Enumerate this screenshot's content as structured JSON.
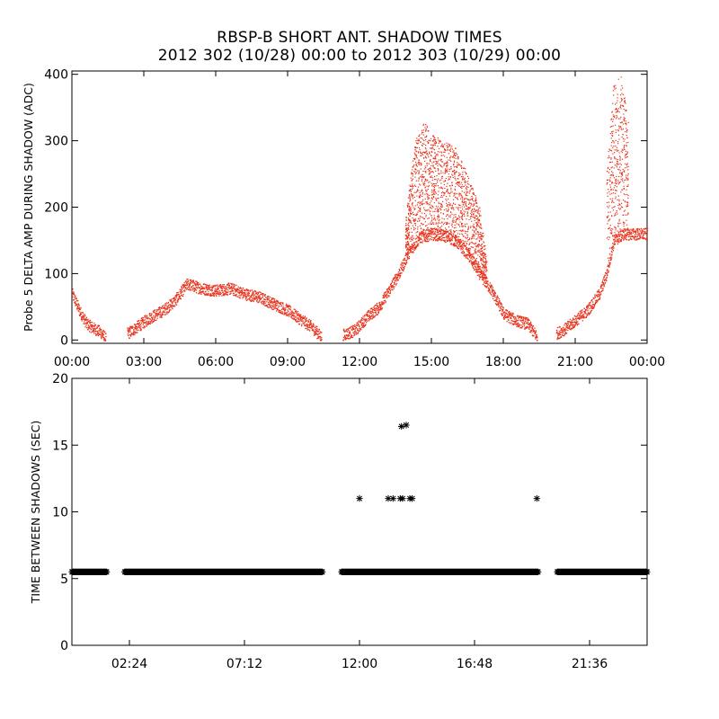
{
  "title": "RBSP-B SHORT ANT. SHADOW TIMES",
  "subtitle": "2012 302 (10/28) 00:00 to 2012 303 (10/29) 00:00",
  "colors": {
    "top_series": "#e8321c",
    "bottom_series": "#000000",
    "axes": "#000000"
  },
  "chart_data": [
    {
      "type": "scatter",
      "ylabel": "Probe 5 DELTA AMP DURING SHADOW (ADC)",
      "xlabel": "",
      "x_unit": "hours",
      "xlim": [
        0,
        24
      ],
      "ylim": [
        -5,
        405
      ],
      "x_tick_values": [
        0,
        3,
        6,
        9,
        12,
        15,
        18,
        21,
        24
      ],
      "x_tick_labels": [
        "00:00",
        "03:00",
        "06:00",
        "09:00",
        "12:00",
        "15:00",
        "18:00",
        "21:00",
        "00:00"
      ],
      "y_tick_values": [
        0,
        100,
        200,
        300,
        400
      ],
      "y_tick_labels": [
        "0",
        "100",
        "200",
        "300",
        "400"
      ],
      "grid": false,
      "series": [
        {
          "color": "#e8321c",
          "marker": "dot",
          "segments": [
            {
              "x": [
                0.0,
                0.3,
                0.6,
                0.9,
                1.2,
                1.4
              ],
              "y": [
                70,
                45,
                25,
                18,
                12,
                2
              ]
            },
            {
              "x": [
                2.3,
                2.7,
                3.2,
                3.8,
                4.3,
                4.8,
                5.4,
                6.0,
                6.6,
                7.2,
                7.8,
                8.4,
                9.0,
                9.6,
                10.0,
                10.4
              ],
              "y": [
                10,
                20,
                33,
                45,
                60,
                85,
                78,
                75,
                78,
                70,
                65,
                55,
                45,
                30,
                20,
                5
              ]
            },
            {
              "x": [
                11.3,
                11.8,
                12.3,
                12.8,
                13.3,
                13.7,
                14.0,
                14.5,
                15.0,
                15.5,
                16.0,
                16.5,
                17.0,
                17.5,
                18.0,
                18.5,
                19.0,
                19.4
              ],
              "y": [
                8,
                15,
                35,
                50,
                80,
                105,
                130,
                155,
                160,
                158,
                150,
                130,
                100,
                75,
                40,
                30,
                25,
                5
              ]
            },
            {
              "x": [
                20.2,
                20.6,
                21.0,
                21.5,
                22.0,
                22.3,
                22.6,
                23.0,
                23.5,
                24.0
              ],
              "y": [
                10,
                18,
                30,
                45,
                70,
                100,
                150,
                160,
                160,
                160
              ]
            }
          ],
          "upper_envelope": [
            {
              "x": [
                13.9,
                14.3,
                14.7,
                15.0,
                15.5,
                16.0,
                16.5,
                17.0,
                17.3
              ],
              "y": [
                180,
                300,
                330,
                310,
                300,
                290,
                250,
                200,
                120
              ]
            },
            {
              "x": [
                22.3,
                22.6,
                22.9,
                23.2
              ],
              "y": [
                260,
                390,
                400,
                330
              ]
            }
          ]
        }
      ]
    },
    {
      "type": "scatter",
      "ylabel": "TIME BETWEEN SHADOWS (SEC)",
      "xlabel": "",
      "x_unit": "hours",
      "xlim": [
        0,
        24
      ],
      "ylim": [
        0,
        20
      ],
      "x_tick_values": [
        2.4,
        7.2,
        12.0,
        16.8,
        21.6
      ],
      "x_tick_labels": [
        "02:24",
        "07:12",
        "12:00",
        "16:48",
        "21:36"
      ],
      "y_tick_values": [
        0,
        5,
        10,
        15,
        20
      ],
      "y_tick_labels": [
        "0",
        "5",
        "10",
        "15",
        "20"
      ],
      "grid": false,
      "series": [
        {
          "color": "#000000",
          "marker": "asterisk",
          "baseline_value": 5.5,
          "baseline_ranges": [
            [
              0.0,
              1.45
            ],
            [
              2.2,
              10.45
            ],
            [
              11.25,
              19.45
            ],
            [
              20.25,
              24.0
            ]
          ],
          "x": [
            12.0,
            13.2,
            13.4,
            13.7,
            13.8,
            14.1,
            14.2,
            19.4,
            13.75,
            13.95
          ],
          "y": [
            11,
            11,
            11,
            11,
            11,
            11,
            11,
            11,
            16.4,
            16.5
          ]
        }
      ]
    }
  ]
}
